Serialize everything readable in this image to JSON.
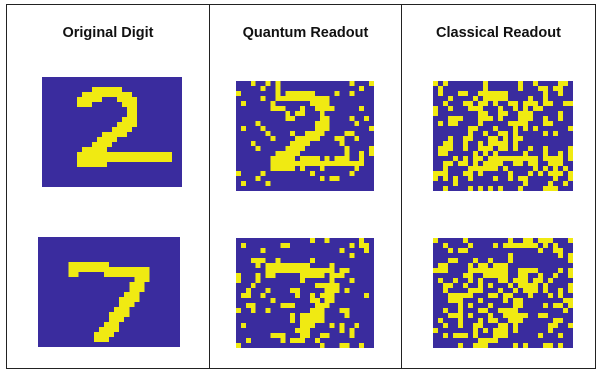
{
  "columns": [
    {
      "title": "Original Digit"
    },
    {
      "title": "Quantum Readout"
    },
    {
      "title": "Classical Readout"
    }
  ],
  "colors": {
    "background": "#3a2c9e",
    "foreground": "#f0ea12"
  },
  "rows": [
    {
      "digit": "2"
    },
    {
      "digit": "7"
    }
  ],
  "noise_levels": {
    "original": 0.0,
    "quantum": 0.12,
    "classical": 0.28
  }
}
